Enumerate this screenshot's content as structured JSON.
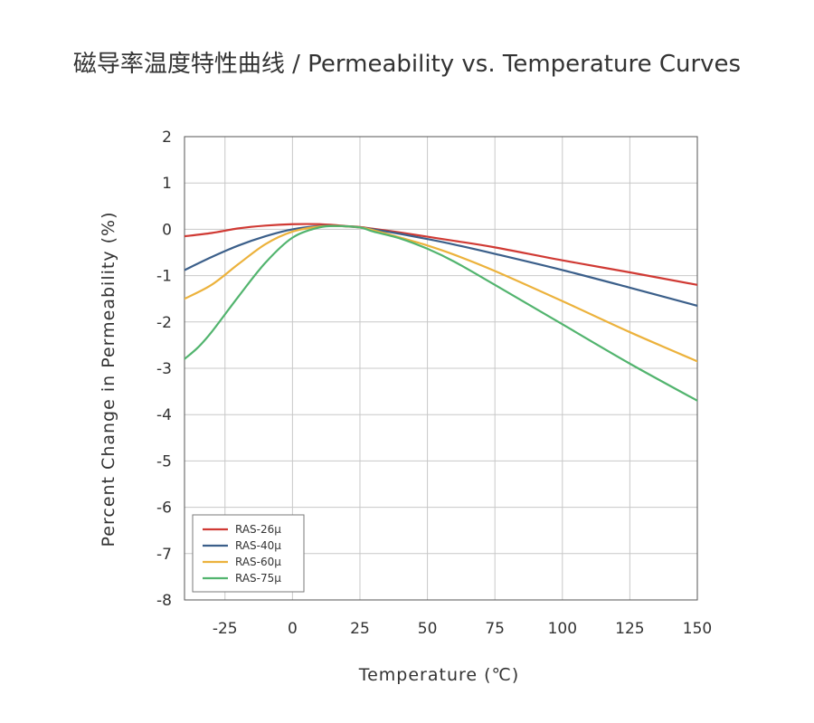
{
  "page": {
    "title": "磁导率温度特性曲线 / Permeability vs. Temperature Curves"
  },
  "chart_data": {
    "type": "line",
    "title": "磁导率温度特性曲线 / Permeability vs. Temperature Curves",
    "xlabel": "Temperature (℃)",
    "ylabel": "Percent Change in Permeability (%)",
    "xlim": [
      -40,
      150
    ],
    "ylim": [
      -8,
      2
    ],
    "xticks": [
      -25,
      0,
      25,
      50,
      75,
      100,
      125,
      150
    ],
    "yticks": [
      2,
      1,
      0,
      -1,
      -2,
      -3,
      -4,
      -5,
      -6,
      -7,
      -8
    ],
    "grid": true,
    "legend_position": "bottom-left",
    "series": [
      {
        "name": "RAS-26µ",
        "color": "#d03a34",
        "x": [
          -40,
          -30,
          -20,
          -10,
          0,
          10,
          20,
          25,
          30,
          40,
          50,
          60,
          75,
          100,
          125,
          150
        ],
        "y": [
          -0.15,
          -0.08,
          0.02,
          0.08,
          0.11,
          0.11,
          0.07,
          0.05,
          0.01,
          -0.07,
          -0.16,
          -0.25,
          -0.39,
          -0.67,
          -0.93,
          -1.2
        ]
      },
      {
        "name": "RAS-40µ",
        "color": "#3b5f8a",
        "x": [
          -40,
          -30,
          -20,
          -10,
          0,
          10,
          17,
          25,
          30,
          40,
          50,
          60,
          75,
          100,
          125,
          150
        ],
        "y": [
          -0.88,
          -0.6,
          -0.35,
          -0.15,
          0.0,
          0.07,
          0.07,
          0.04,
          0.0,
          -0.1,
          -0.21,
          -0.33,
          -0.53,
          -0.88,
          -1.26,
          -1.65
        ]
      },
      {
        "name": "RAS-60µ",
        "color": "#ecb23c",
        "x": [
          -40,
          -30,
          -20,
          -10,
          0,
          10,
          17,
          25,
          30,
          40,
          50,
          60,
          75,
          100,
          125,
          150
        ],
        "y": [
          -1.5,
          -1.2,
          -0.75,
          -0.32,
          -0.05,
          0.06,
          0.07,
          0.04,
          -0.02,
          -0.18,
          -0.35,
          -0.55,
          -0.9,
          -1.55,
          -2.22,
          -2.85
        ]
      },
      {
        "name": "RAS-75µ",
        "color": "#52b46e",
        "x": [
          -40,
          -35,
          -30,
          -20,
          -10,
          0,
          10,
          17,
          25,
          30,
          40,
          50,
          60,
          75,
          100,
          125,
          150
        ],
        "y": [
          -2.8,
          -2.55,
          -2.22,
          -1.45,
          -0.72,
          -0.18,
          0.04,
          0.07,
          0.04,
          -0.05,
          -0.2,
          -0.42,
          -0.7,
          -1.2,
          -2.05,
          -2.9,
          -3.7
        ]
      }
    ]
  }
}
